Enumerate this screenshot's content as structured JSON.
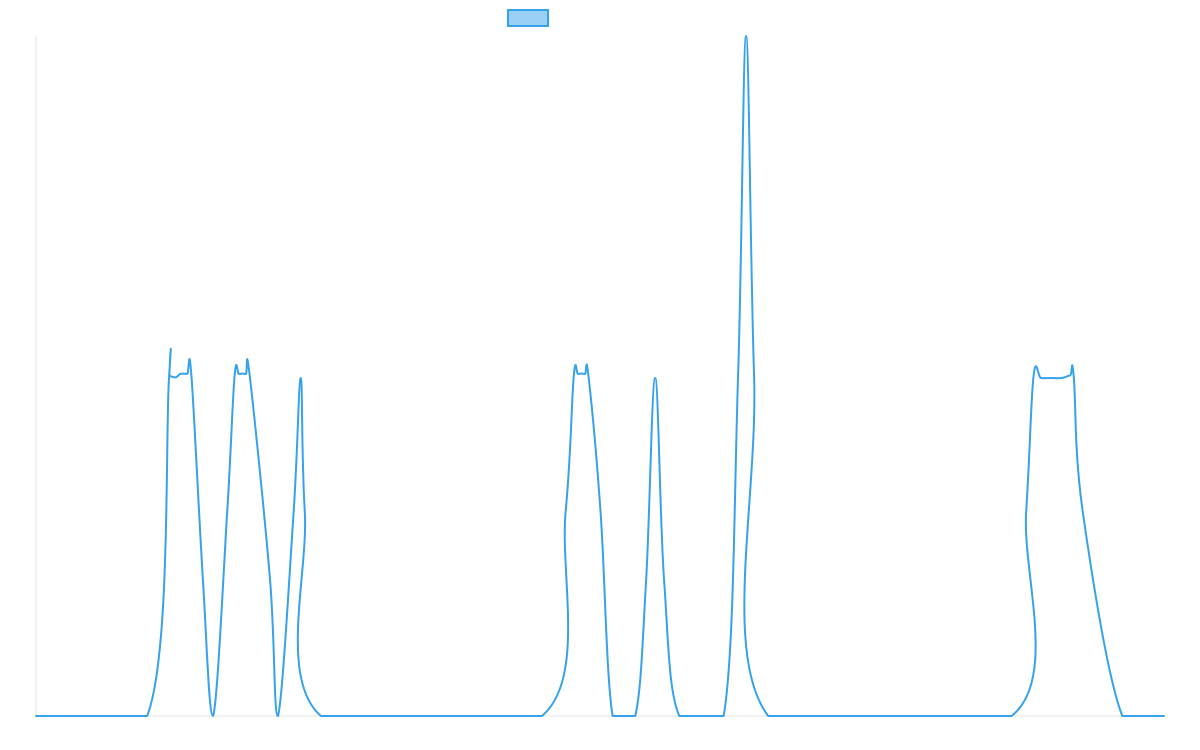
{
  "chart_data": {
    "type": "line",
    "title": "",
    "xlabel": "",
    "ylabel": "",
    "grid": false,
    "legend": {
      "position": "top-center"
    },
    "xlim": [
      0,
      1
    ],
    "ylim": [
      0,
      1
    ],
    "series": [
      {
        "color": "#36a2eb",
        "fill": "#9ad0f5",
        "points": [
          [
            0.0,
            0.0
          ],
          [
            0.0985,
            0.0
          ],
          [
            0.118,
            0.5
          ],
          [
            0.1185,
            0.5
          ],
          [
            0.124,
            0.498
          ],
          [
            0.128,
            0.503
          ],
          [
            0.134,
            0.503
          ],
          [
            0.1378,
            0.5
          ],
          [
            0.148,
            0.2
          ],
          [
            0.157,
            0.0
          ],
          [
            0.1695,
            0.3
          ],
          [
            0.176,
            0.499
          ],
          [
            0.18,
            0.503
          ],
          [
            0.186,
            0.503
          ],
          [
            0.1895,
            0.5
          ],
          [
            0.2075,
            0.2
          ],
          [
            0.2145,
            0.0
          ],
          [
            0.2284,
            0.3
          ],
          [
            0.2347,
            0.497
          ],
          [
            0.2383,
            0.3
          ],
          [
            0.2526,
            0.0
          ],
          [
            0.4485,
            0.0
          ],
          [
            0.4695,
            0.3
          ],
          [
            0.4767,
            0.499
          ],
          [
            0.4806,
            0.503
          ],
          [
            0.4866,
            0.503
          ],
          [
            0.4898,
            0.5
          ],
          [
            0.5005,
            0.3
          ],
          [
            0.5112,
            0.0
          ],
          [
            0.5312,
            0.0
          ],
          [
            0.5409,
            0.2
          ],
          [
            0.5489,
            0.497
          ],
          [
            0.5568,
            0.2
          ],
          [
            0.5703,
            0.0
          ],
          [
            0.6096,
            0.0
          ],
          [
            0.6224,
            0.5
          ],
          [
            0.6295,
            1.0
          ],
          [
            0.6366,
            0.5
          ],
          [
            0.6491,
            0.0
          ],
          [
            0.8649,
            0.0
          ],
          [
            0.8778,
            0.3
          ],
          [
            0.8843,
            0.499
          ],
          [
            0.891,
            0.497
          ],
          [
            0.9,
            0.497
          ],
          [
            0.9095,
            0.497
          ],
          [
            0.9168,
            0.501
          ],
          [
            0.92,
            0.499
          ],
          [
            0.928,
            0.3
          ],
          [
            0.9631,
            0.0
          ],
          [
            1.0,
            0.0
          ]
        ]
      }
    ]
  }
}
